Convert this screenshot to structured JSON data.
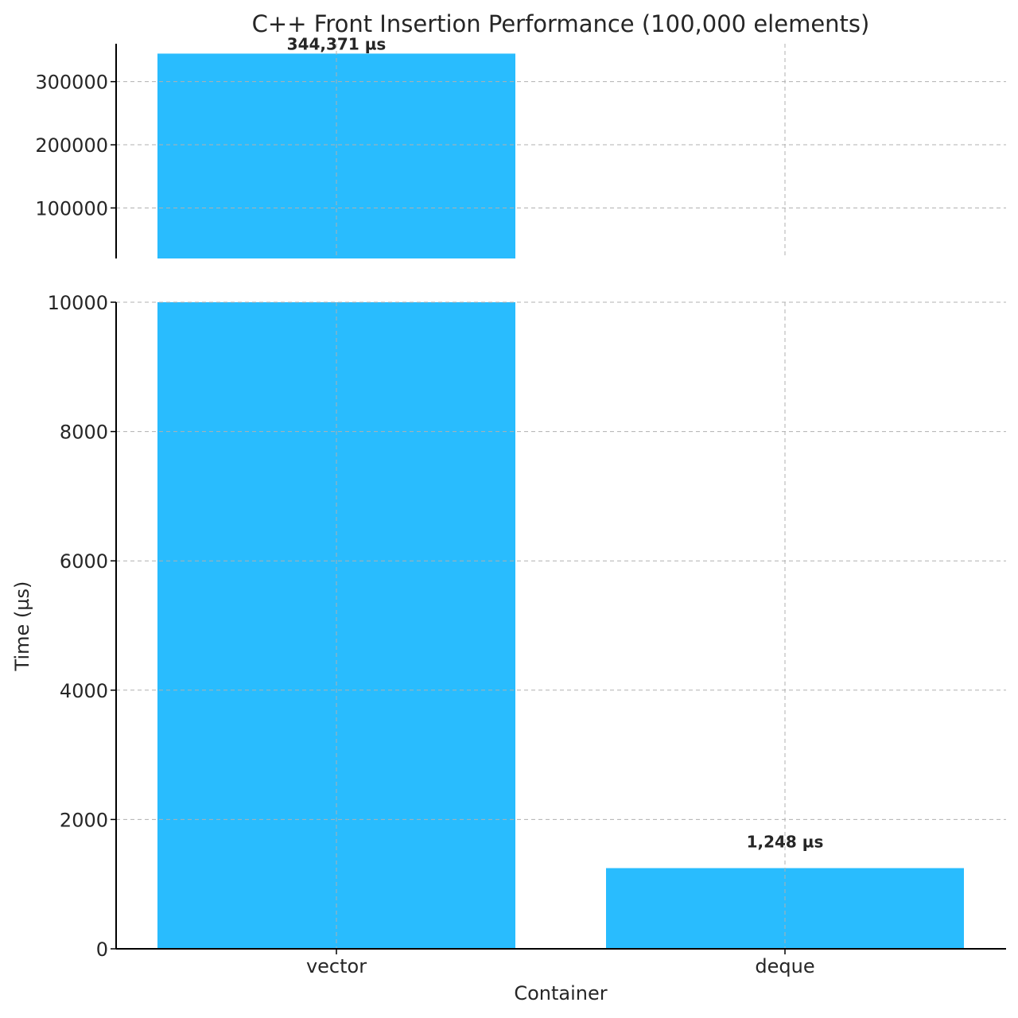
{
  "chart_data": {
    "type": "bar",
    "title": "C++ Front Insertion Performance (100,000 elements)",
    "xlabel": "Container",
    "ylabel": "Time (µs)",
    "categories": [
      "vector",
      "deque"
    ],
    "values": [
      344371,
      1248
    ],
    "value_labels": [
      "344,371 µs",
      "1,248 µs"
    ],
    "bar_color": "#29BCFE",
    "broken_axis": true,
    "panels": [
      {
        "name": "top",
        "ylim": [
          20000,
          360000
        ],
        "yticks": [
          100000,
          200000,
          300000
        ],
        "ytick_labels": [
          "100000",
          "200000",
          "300000"
        ]
      },
      {
        "name": "bottom",
        "ylim": [
          0,
          10000
        ],
        "yticks": [
          0,
          2000,
          4000,
          6000,
          8000,
          10000
        ],
        "ytick_labels": [
          "0",
          "2000",
          "4000",
          "6000",
          "8000",
          "10000"
        ]
      }
    ],
    "grid": true
  }
}
